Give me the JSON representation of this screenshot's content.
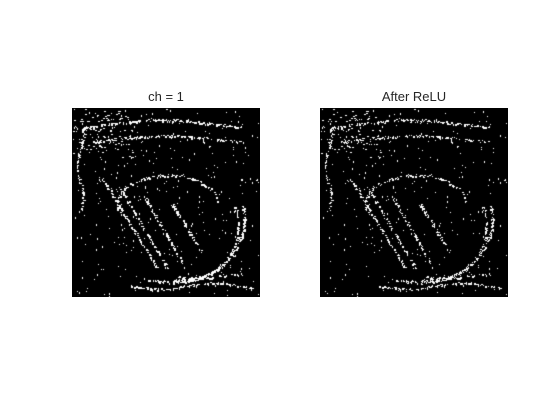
{
  "panels": [
    {
      "title": "ch = 1"
    },
    {
      "title": "After ReLU"
    }
  ],
  "colors": {
    "background": "#ffffff",
    "image_background": "#000000",
    "feature_pixels": "#ffffff",
    "title_text": "#262626"
  }
}
